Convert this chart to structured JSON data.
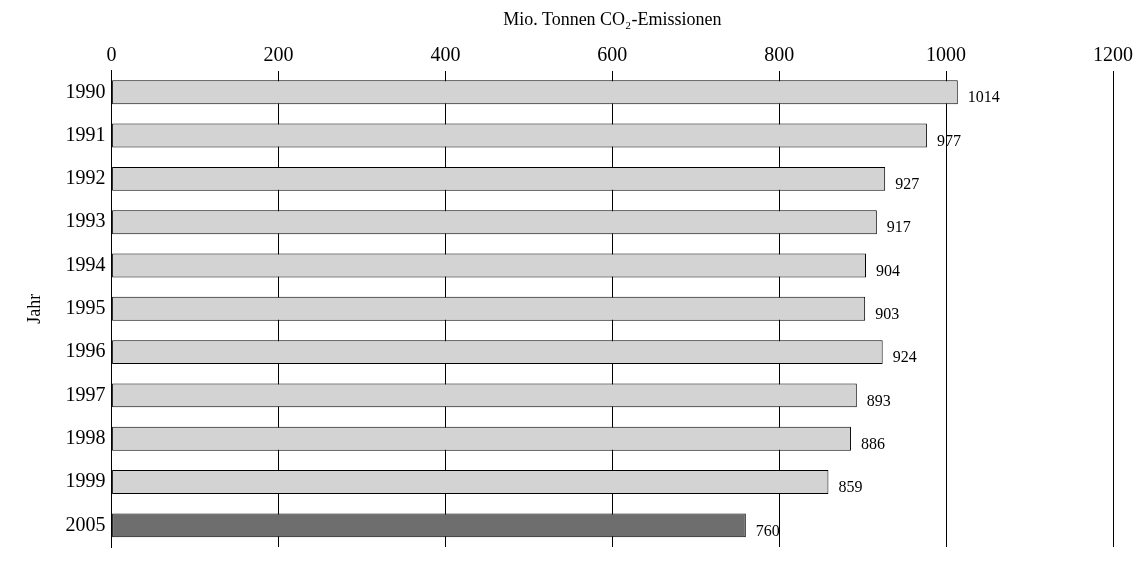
{
  "chart_data": {
    "type": "bar",
    "orientation": "horizontal",
    "xlabel": "Mio. Tonnen CO₂-Emissionen",
    "ylabel": "Jahr",
    "categories": [
      "1990",
      "1991",
      "1992",
      "1993",
      "1994",
      "1995",
      "1996",
      "1997",
      "1998",
      "1999",
      "2005"
    ],
    "values": [
      1014,
      977,
      927,
      917,
      904,
      903,
      924,
      893,
      886,
      859,
      760
    ],
    "colors": [
      "#d3d3d3",
      "#d3d3d3",
      "#d3d3d3",
      "#d3d3d3",
      "#d3d3d3",
      "#d3d3d3",
      "#d3d3d3",
      "#d3d3d3",
      "#d3d3d3",
      "#d3d3d3",
      "#6e6e6e"
    ],
    "xlim": [
      0,
      1200
    ],
    "xticks": [
      0,
      200,
      400,
      600,
      800,
      1000,
      1200
    ],
    "grid": "x",
    "legend": false,
    "data_labels": true
  }
}
